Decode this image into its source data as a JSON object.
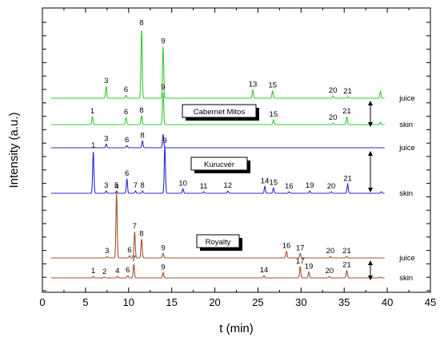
{
  "chart_data": {
    "type": "line",
    "xlabel": "t (min)",
    "ylabel": "Intensity (a.u.)",
    "xlim": [
      0,
      45
    ],
    "xticks": [
      0,
      5,
      10,
      15,
      20,
      25,
      30,
      35,
      40,
      45
    ],
    "y_tick_labels": "none",
    "grid": false,
    "colors": {
      "Cabernet Mitos": "#33cc33",
      "Kurucvér": "#2a2ad4",
      "Royalty": "#a0522d"
    },
    "groups": [
      {
        "sample": "Cabernet Mitos",
        "traces": [
          {
            "name": "juice",
            "label_x": 41.4,
            "baseline": 0,
            "peaks": [
              {
                "label": "3",
                "t": 7.4,
                "height": 0.16
              },
              {
                "label": "6",
                "t": 9.7,
                "height": 0.04
              },
              {
                "label": "8",
                "t": 11.5,
                "height": 0.92
              },
              {
                "label": "9",
                "t": 14.0,
                "height": 0.68
              },
              {
                "label": "13",
                "t": 24.4,
                "height": 0.11
              },
              {
                "label": "15",
                "t": 26.7,
                "height": 0.1
              },
              {
                "label": "20",
                "t": 33.7,
                "height": 0.03
              },
              {
                "label": "21",
                "t": 35.4,
                "height": 0.02
              },
              {
                "label": "",
                "t": 39.2,
                "height": 0.09
              }
            ]
          },
          {
            "name": "skin",
            "label_x": 41.4,
            "baseline": 0,
            "peaks": [
              {
                "label": "1",
                "t": 5.8,
                "height": 0.1
              },
              {
                "label": "6",
                "t": 9.7,
                "height": 0.09
              },
              {
                "label": "8",
                "t": 11.5,
                "height": 0.11
              },
              {
                "label": "9",
                "t": 14.0,
                "height": 0.4
              },
              {
                "label": "15",
                "t": 26.8,
                "height": 0.06
              },
              {
                "label": "20",
                "t": 33.7,
                "height": 0.02
              },
              {
                "label": "21",
                "t": 35.3,
                "height": 0.1
              },
              {
                "label": "",
                "t": 39.2,
                "height": 0.03
              }
            ]
          }
        ]
      },
      {
        "sample": "Kurucvér",
        "traces": [
          {
            "name": "juice",
            "label_x": 41.4,
            "baseline": 0,
            "peaks": [
              {
                "label": "3",
                "t": 7.4,
                "height": 0.05
              },
              {
                "label": "6",
                "t": 9.8,
                "height": 0.03
              },
              {
                "label": "8",
                "t": 11.6,
                "height": 0.09
              },
              {
                "label": "",
                "t": 14.0,
                "height": 0.18
              }
            ]
          },
          {
            "name": "skin",
            "label_x": 41.4,
            "baseline": 0,
            "peaks": [
              {
                "label": "1",
                "t": 5.9,
                "height": 0.56
              },
              {
                "label": "3",
                "t": 7.4,
                "height": 0.03
              },
              {
                "label": "5",
                "t": 8.6,
                "height": 0.03
              },
              {
                "label": "6",
                "t": 9.8,
                "height": 0.19
              },
              {
                "label": "7",
                "t": 10.8,
                "height": 0.03
              },
              {
                "label": "8",
                "t": 11.6,
                "height": 0.03
              },
              {
                "label": "9",
                "t": 14.2,
                "height": 0.62
              },
              {
                "label": "10",
                "t": 16.3,
                "height": 0.06
              },
              {
                "label": "11",
                "t": 18.7,
                "height": 0.02
              },
              {
                "label": "12",
                "t": 21.5,
                "height": 0.03
              },
              {
                "label": "14",
                "t": 25.8,
                "height": 0.09
              },
              {
                "label": "15",
                "t": 26.8,
                "height": 0.07
              },
              {
                "label": "16",
                "t": 28.6,
                "height": 0.02
              },
              {
                "label": "19",
                "t": 31.0,
                "height": 0.03
              },
              {
                "label": "20",
                "t": 33.5,
                "height": 0.02
              },
              {
                "label": "21",
                "t": 35.4,
                "height": 0.12
              },
              {
                "label": "",
                "t": 39.3,
                "height": 0.02
              }
            ]
          }
        ]
      },
      {
        "sample": "Royalty",
        "traces": [
          {
            "name": "juice",
            "label_x": 41.4,
            "baseline": 0,
            "peaks": [
              {
                "label": "3",
                "t": 7.5,
                "height": 0.02
              },
              {
                "label": "4",
                "t": 8.6,
                "height": 0.87
              },
              {
                "label": "6",
                "t": 10.1,
                "height": 0.03
              },
              {
                "label": "7",
                "t": 10.7,
                "height": 0.35
              },
              {
                "label": "8",
                "t": 11.5,
                "height": 0.25
              },
              {
                "label": "9",
                "t": 14.0,
                "height": 0.06
              },
              {
                "label": "16",
                "t": 28.3,
                "height": 0.09
              },
              {
                "label": "17",
                "t": 29.9,
                "height": 0.06
              },
              {
                "label": "20",
                "t": 33.4,
                "height": 0.02
              },
              {
                "label": "21",
                "t": 35.3,
                "height": 0.02
              }
            ]
          },
          {
            "name": "skin",
            "label_x": 41.4,
            "baseline": 0,
            "peaks": [
              {
                "label": "1",
                "t": 5.9,
                "height": 0.02
              },
              {
                "label": "2",
                "t": 7.2,
                "height": 0.01
              },
              {
                "label": "4",
                "t": 8.7,
                "height": 0.02
              },
              {
                "label": "6",
                "t": 9.9,
                "height": 0.03
              },
              {
                "label": "7",
                "t": 10.6,
                "height": 0.18
              },
              {
                "label": "9",
                "t": 14.0,
                "height": 0.07
              },
              {
                "label": "14",
                "t": 25.7,
                "height": 0.03
              },
              {
                "label": "17",
                "t": 29.9,
                "height": 0.15
              },
              {
                "label": "19",
                "t": 30.9,
                "height": 0.08
              },
              {
                "label": "20",
                "t": 33.3,
                "height": 0.02
              },
              {
                "label": "21",
                "t": 35.3,
                "height": 0.1
              },
              {
                "label": "",
                "t": 39.2,
                "height": 0.01
              }
            ]
          }
        ]
      }
    ]
  }
}
